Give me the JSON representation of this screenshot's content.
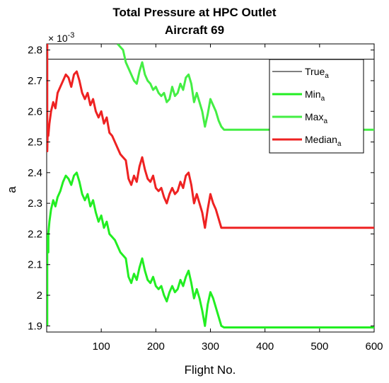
{
  "chart_data": {
    "type": "line",
    "title": "Total Pressure at HPC Outlet",
    "subtitle": "Aircraft 69",
    "xlabel": "Flight No.",
    "ylabel": "a",
    "y_exponent_label": "× 10",
    "y_exponent_power": "-3",
    "y_multiplier": 0.001,
    "xlim": [
      0,
      600
    ],
    "ylim": [
      1.88,
      2.82
    ],
    "x_ticks": [
      100,
      200,
      300,
      400,
      500,
      600
    ],
    "y_ticks": [
      1.9,
      2.0,
      2.1,
      2.2,
      2.3,
      2.4,
      2.5,
      2.6,
      2.7,
      2.8
    ],
    "x_tick_labels": [
      "100",
      "200",
      "300",
      "400",
      "500",
      "600"
    ],
    "y_tick_labels": [
      "1.9",
      "2",
      "2.1",
      "2.2",
      "2.3",
      "2.4",
      "2.5",
      "2.6",
      "2.7",
      "2.8"
    ],
    "grid": false,
    "legend_position": "top-right",
    "series": [
      {
        "name": "True",
        "name_sub": "a",
        "color": "#000000",
        "width": 1,
        "x": [
          0,
          600
        ],
        "y": [
          2.77,
          2.77
        ]
      },
      {
        "name": "Min",
        "name_sub": "a",
        "color": "#22ee22",
        "width": 3,
        "x": [
          1,
          1,
          3,
          3,
          5,
          8,
          12,
          16,
          20,
          25,
          30,
          35,
          40,
          45,
          50,
          55,
          60,
          65,
          70,
          75,
          80,
          85,
          90,
          95,
          100,
          105,
          110,
          115,
          120,
          125,
          130,
          135,
          140,
          145,
          150,
          155,
          160,
          165,
          170,
          175,
          180,
          185,
          190,
          195,
          200,
          205,
          210,
          215,
          220,
          225,
          230,
          235,
          240,
          245,
          250,
          255,
          260,
          265,
          270,
          275,
          280,
          285,
          290,
          295,
          300,
          305,
          310,
          315,
          320,
          325,
          600
        ],
        "y": [
          1.9,
          2.2,
          2.14,
          2.2,
          2.24,
          2.28,
          2.31,
          2.29,
          2.32,
          2.34,
          2.37,
          2.39,
          2.38,
          2.36,
          2.39,
          2.4,
          2.37,
          2.33,
          2.31,
          2.33,
          2.29,
          2.31,
          2.27,
          2.24,
          2.26,
          2.22,
          2.24,
          2.2,
          2.19,
          2.18,
          2.16,
          2.14,
          2.13,
          2.12,
          2.06,
          2.04,
          2.07,
          2.05,
          2.09,
          2.12,
          2.08,
          2.05,
          2.04,
          2.06,
          2.03,
          2.02,
          2.03,
          2.0,
          1.98,
          2.01,
          2.03,
          2.01,
          2.02,
          2.05,
          2.03,
          2.06,
          2.08,
          2.04,
          1.99,
          2.02,
          1.99,
          1.95,
          1.9,
          1.97,
          2.01,
          1.99,
          1.96,
          1.93,
          1.9,
          1.895,
          1.895
        ]
      },
      {
        "name": "Max",
        "name_sub": "a",
        "color": "#44ee44",
        "width": 3,
        "x": [
          130,
          135,
          140,
          145,
          150,
          155,
          160,
          165,
          170,
          175,
          180,
          185,
          190,
          195,
          200,
          205,
          210,
          215,
          220,
          225,
          230,
          235,
          240,
          245,
          250,
          255,
          260,
          265,
          270,
          275,
          280,
          285,
          290,
          295,
          300,
          305,
          310,
          315,
          320,
          325,
          600
        ],
        "y": [
          2.82,
          2.81,
          2.8,
          2.76,
          2.74,
          2.72,
          2.7,
          2.69,
          2.73,
          2.76,
          2.72,
          2.7,
          2.69,
          2.67,
          2.68,
          2.66,
          2.65,
          2.66,
          2.63,
          2.64,
          2.68,
          2.65,
          2.66,
          2.69,
          2.67,
          2.71,
          2.72,
          2.69,
          2.63,
          2.66,
          2.63,
          2.6,
          2.55,
          2.59,
          2.64,
          2.62,
          2.6,
          2.57,
          2.55,
          2.54,
          2.54
        ]
      },
      {
        "name": "Median",
        "name_sub": "a",
        "color": "#ee2222",
        "width": 3,
        "x": [
          1,
          1,
          2,
          3,
          5,
          8,
          12,
          16,
          20,
          25,
          30,
          35,
          40,
          45,
          50,
          55,
          60,
          65,
          70,
          75,
          80,
          85,
          90,
          95,
          100,
          105,
          110,
          115,
          120,
          125,
          130,
          135,
          140,
          145,
          150,
          155,
          160,
          165,
          170,
          175,
          180,
          185,
          190,
          195,
          200,
          205,
          210,
          215,
          220,
          225,
          230,
          235,
          240,
          245,
          250,
          255,
          260,
          265,
          270,
          275,
          280,
          285,
          290,
          295,
          300,
          305,
          310,
          315,
          320,
          325,
          600
        ],
        "y": [
          2.82,
          2.47,
          2.55,
          2.52,
          2.56,
          2.6,
          2.63,
          2.61,
          2.66,
          2.68,
          2.7,
          2.72,
          2.71,
          2.68,
          2.72,
          2.73,
          2.7,
          2.66,
          2.64,
          2.66,
          2.62,
          2.64,
          2.6,
          2.58,
          2.6,
          2.56,
          2.58,
          2.53,
          2.52,
          2.5,
          2.48,
          2.46,
          2.45,
          2.44,
          2.38,
          2.36,
          2.39,
          2.37,
          2.42,
          2.45,
          2.41,
          2.38,
          2.37,
          2.39,
          2.35,
          2.34,
          2.35,
          2.32,
          2.3,
          2.33,
          2.35,
          2.33,
          2.34,
          2.37,
          2.35,
          2.39,
          2.4,
          2.36,
          2.3,
          2.33,
          2.3,
          2.27,
          2.22,
          2.28,
          2.33,
          2.3,
          2.28,
          2.25,
          2.22,
          2.22,
          2.22
        ]
      }
    ]
  }
}
